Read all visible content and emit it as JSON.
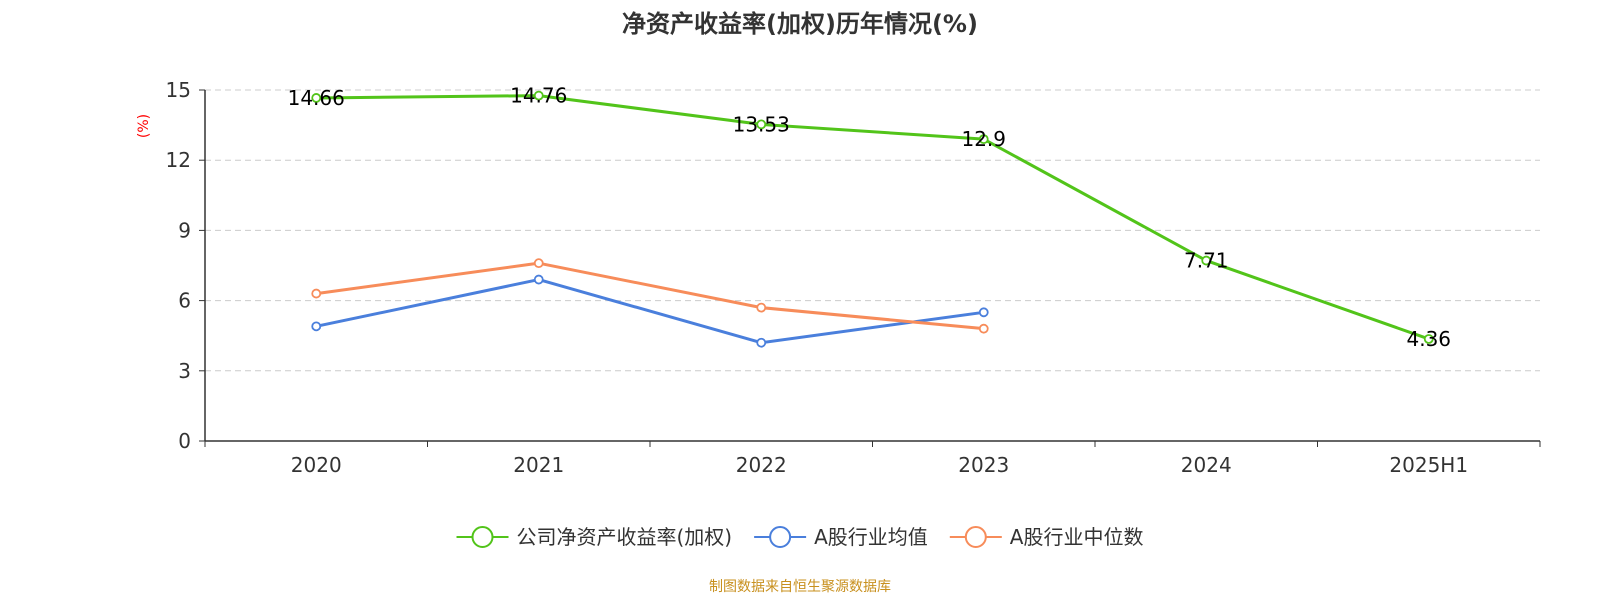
{
  "chart_data": {
    "type": "line",
    "title": "净资产收益率(加权)历年情况(%)",
    "ylabel": "(%)",
    "xlabel": "",
    "categories": [
      "2020",
      "2021",
      "2022",
      "2023",
      "2024",
      "2025H1"
    ],
    "ylim": [
      0,
      15
    ],
    "yticks": [
      0,
      3,
      6,
      9,
      12,
      15
    ],
    "grid": true,
    "legend_position": "bottom",
    "series": [
      {
        "name": "公司净资产收益率(加权)",
        "color": "#52c41a",
        "values": [
          14.66,
          14.76,
          13.53,
          12.9,
          7.71,
          4.36
        ],
        "data_labels": [
          "14.66",
          "14.76",
          "13.53",
          "12.9",
          "7.71",
          "4.36"
        ]
      },
      {
        "name": "A股行业均值",
        "color": "#4a7fdc",
        "values": [
          4.9,
          6.9,
          4.2,
          5.5,
          null,
          null
        ],
        "data_labels": []
      },
      {
        "name": "A股行业中位数",
        "color": "#f78c5a",
        "values": [
          6.3,
          7.6,
          5.7,
          4.8,
          null,
          null
        ],
        "data_labels": []
      }
    ]
  },
  "source_note": "制图数据来自恒生聚源数据库"
}
